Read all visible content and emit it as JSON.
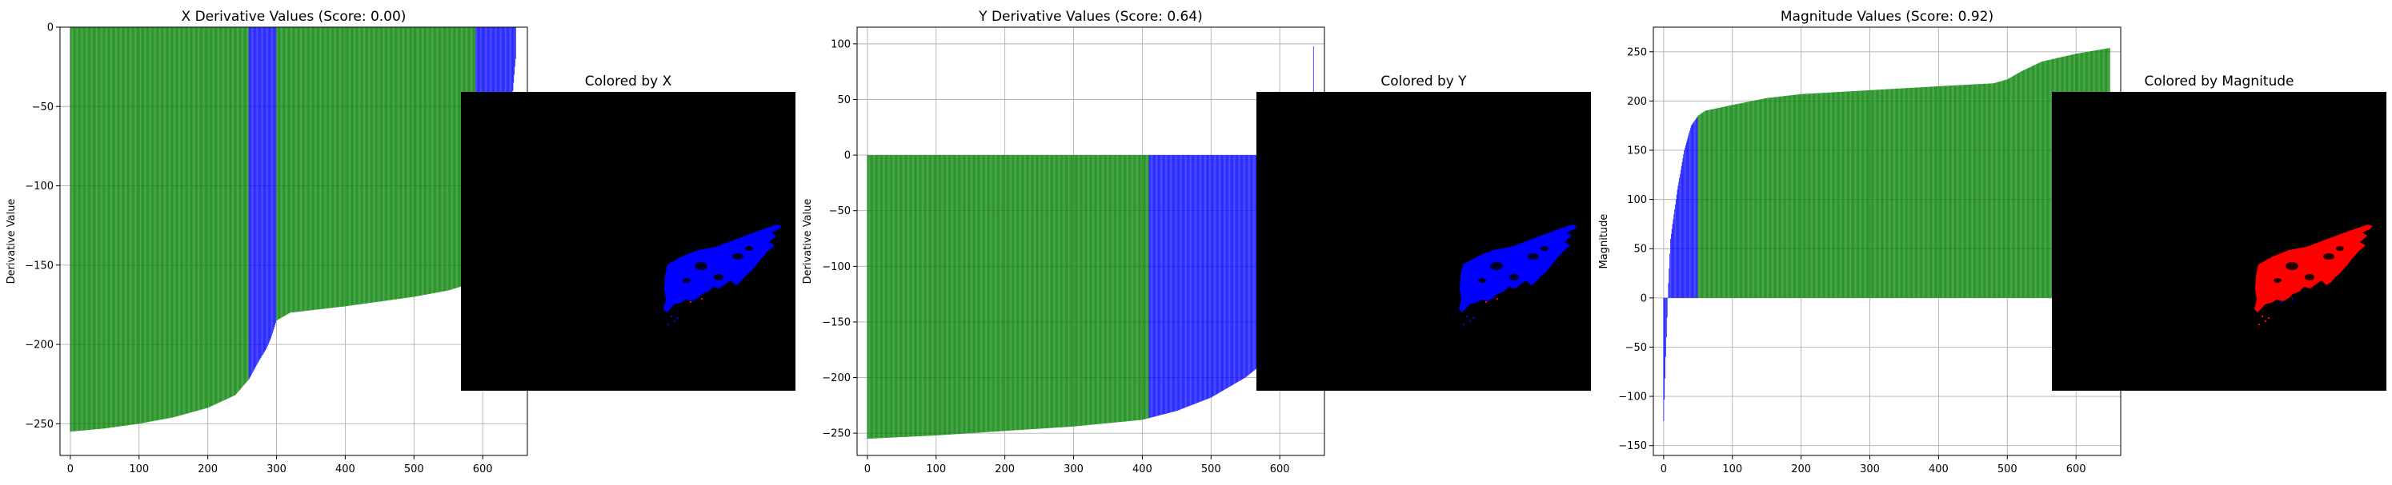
{
  "chart_data": [
    {
      "type": "bar",
      "title": "X Derivative Values (Score: 0.00)",
      "xlabel": "",
      "ylabel": "Derivative Value",
      "xlim": [
        -15,
        665
      ],
      "ylim": [
        -270,
        0
      ],
      "xticks": [
        0,
        100,
        200,
        300,
        400,
        500,
        600
      ],
      "yticks": [
        0,
        -50,
        -100,
        -150,
        -200,
        -250
      ],
      "grid": true,
      "n_bars": 650,
      "bar_baseline": 0,
      "series_colors": {
        "green": "#008000",
        "blue": "#0000ff"
      },
      "profile": [
        [
          0,
          -255
        ],
        [
          50,
          -253
        ],
        [
          100,
          -250
        ],
        [
          150,
          -246
        ],
        [
          200,
          -240
        ],
        [
          240,
          -232
        ],
        [
          260,
          -222
        ],
        [
          275,
          -210
        ],
        [
          285,
          -203
        ],
        [
          292,
          -196
        ],
        [
          300,
          -185
        ],
        [
          320,
          -180
        ],
        [
          400,
          -176
        ],
        [
          500,
          -170
        ],
        [
          550,
          -166
        ],
        [
          580,
          -162
        ],
        [
          600,
          -152
        ],
        [
          615,
          -130
        ],
        [
          630,
          -100
        ],
        [
          640,
          -60
        ],
        [
          648,
          -20
        ],
        [
          649,
          0
        ]
      ],
      "color_runs": [
        [
          0,
          260,
          "green"
        ],
        [
          260,
          300,
          "blue"
        ],
        [
          300,
          590,
          "green"
        ],
        [
          590,
          650,
          "blue"
        ]
      ]
    },
    {
      "type": "image",
      "title": "Colored by X",
      "blob_color": "#0000ff",
      "secondary_color": "#ff0000"
    },
    {
      "type": "bar",
      "title": "Y Derivative Values (Score: 0.64)",
      "xlabel": "",
      "ylabel": "Derivative Value",
      "xlim": [
        -15,
        665
      ],
      "ylim": [
        -270,
        115
      ],
      "xticks": [
        0,
        100,
        200,
        300,
        400,
        500,
        600
      ],
      "yticks": [
        100,
        50,
        0,
        -50,
        -100,
        -150,
        -200,
        -250
      ],
      "grid": true,
      "n_bars": 650,
      "bar_baseline": 0,
      "series_colors": {
        "green": "#008000",
        "blue": "#0000ff"
      },
      "profile": [
        [
          0,
          -255
        ],
        [
          100,
          -252
        ],
        [
          200,
          -248
        ],
        [
          300,
          -244
        ],
        [
          400,
          -238
        ],
        [
          450,
          -230
        ],
        [
          500,
          -218
        ],
        [
          550,
          -200
        ],
        [
          580,
          -185
        ],
        [
          600,
          -170
        ],
        [
          615,
          -155
        ],
        [
          625,
          -140
        ],
        [
          635,
          -120
        ],
        [
          640,
          -95
        ],
        [
          644,
          -70
        ],
        [
          646,
          -40
        ],
        [
          647,
          0
        ],
        [
          648,
          30
        ],
        [
          649,
          98
        ]
      ],
      "color_runs": [
        [
          0,
          410,
          "green"
        ],
        [
          410,
          650,
          "blue"
        ]
      ]
    },
    {
      "type": "image",
      "title": "Colored by Y",
      "blob_color": "#0000ff",
      "secondary_color": "#ff0000"
    },
    {
      "type": "bar",
      "title": "Magnitude Values (Score: 0.92)",
      "xlabel": "",
      "ylabel": "Magnitude",
      "xlim": [
        -15,
        665
      ],
      "ylim": [
        -160,
        275
      ],
      "xticks": [
        0,
        100,
        200,
        300,
        400,
        500,
        600
      ],
      "yticks": [
        250,
        200,
        150,
        100,
        50,
        0,
        -50,
        -100,
        -150
      ],
      "grid": true,
      "n_bars": 650,
      "bar_baseline": 0,
      "series_colors": {
        "green": "#008000",
        "blue": "#0000ff"
      },
      "profile": [
        [
          0,
          -125
        ],
        [
          3,
          -60
        ],
        [
          6,
          0
        ],
        [
          10,
          60
        ],
        [
          20,
          110
        ],
        [
          30,
          150
        ],
        [
          40,
          175
        ],
        [
          50,
          185
        ],
        [
          60,
          190
        ],
        [
          100,
          196
        ],
        [
          150,
          203
        ],
        [
          200,
          207
        ],
        [
          300,
          211
        ],
        [
          400,
          215
        ],
        [
          480,
          218
        ],
        [
          500,
          222
        ],
        [
          520,
          230
        ],
        [
          550,
          240
        ],
        [
          600,
          248
        ],
        [
          650,
          254
        ]
      ],
      "color_runs": [
        [
          0,
          50,
          "blue"
        ],
        [
          50,
          650,
          "green"
        ]
      ]
    },
    {
      "type": "image",
      "title": "Colored by Magnitude",
      "blob_color": "#ff0000",
      "secondary_color": "#0000ff"
    }
  ]
}
